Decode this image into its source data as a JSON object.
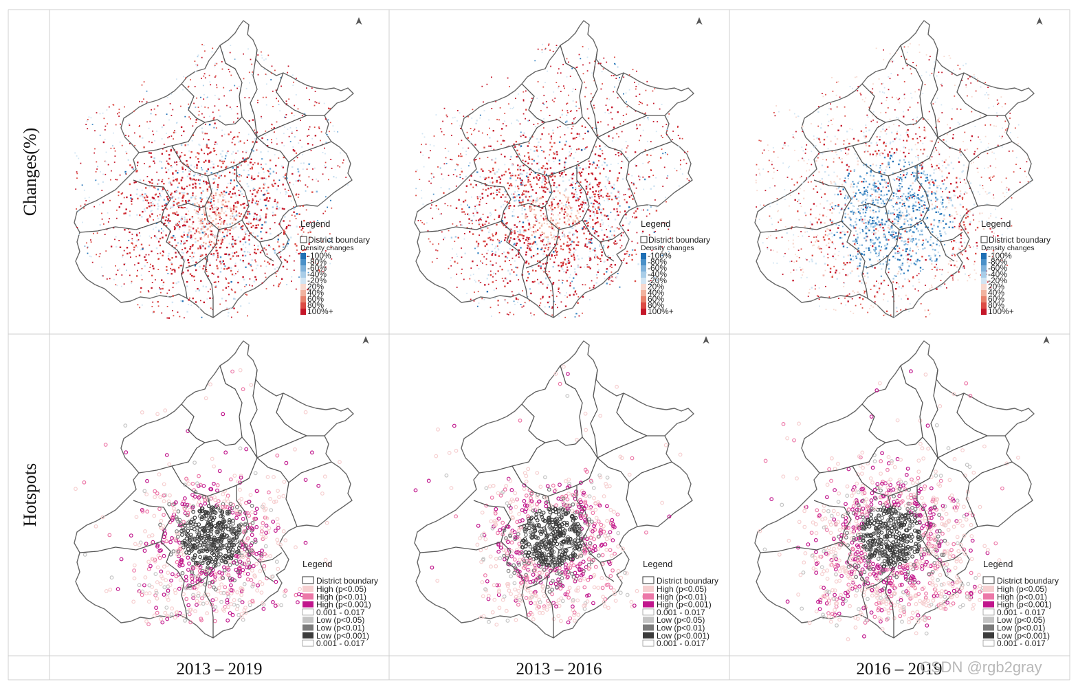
{
  "rows": [
    {
      "label": "Changes(%)"
    },
    {
      "label": "Hotspots"
    }
  ],
  "columns": [
    {
      "label": "2013 – 2019"
    },
    {
      "label": "2013 – 2016"
    },
    {
      "label": "2016 – 2019"
    }
  ],
  "changes_legend": {
    "title": "Legend",
    "boundary_label": "District boundary",
    "subtitle": "Density changes",
    "items": [
      {
        "label": "-100%",
        "color": "#1f6fb4"
      },
      {
        "label": "-80%",
        "color": "#4a90c8"
      },
      {
        "label": "-60%",
        "color": "#7fb2db"
      },
      {
        "label": "-40%",
        "color": "#a9cde8"
      },
      {
        "label": "-20%",
        "color": "#d2e5f3"
      },
      {
        "label": "20%",
        "color": "#f7d9cf"
      },
      {
        "label": "40%",
        "color": "#f1b29f"
      },
      {
        "label": "60%",
        "color": "#e8826d"
      },
      {
        "label": "80%",
        "color": "#dc4b44"
      },
      {
        "label": "100%+",
        "color": "#c5172a"
      }
    ]
  },
  "hotspot_legend": {
    "title": "Legend",
    "boundary_label": "District boundary",
    "items": [
      {
        "label": "High (p<0.05)",
        "color": "#f6cfd0"
      },
      {
        "label": "High (p<0.01)",
        "color": "#ec78a8"
      },
      {
        "label": "High (p<0.001)",
        "color": "#c0168c"
      },
      {
        "label": "0.001 - 0.017",
        "color": "#ffffff"
      },
      {
        "label": "Low (p<0.05)",
        "color": "#c4c4c4"
      },
      {
        "label": "Low (p<0.01)",
        "color": "#7a7a7a"
      },
      {
        "label": "Low (p<0.001)",
        "color": "#3b3b3b"
      },
      {
        "label": "0.001 - 0.017",
        "color": "#ffffff"
      }
    ]
  },
  "colors": {
    "district_line": "#555555",
    "grid_line": "#cfcfcf",
    "increase": "#c5172a",
    "decrease": "#2a7ab8"
  },
  "north_arrow_icon": "north-arrow-icon",
  "watermark": "CSDN @rgb2gray"
}
